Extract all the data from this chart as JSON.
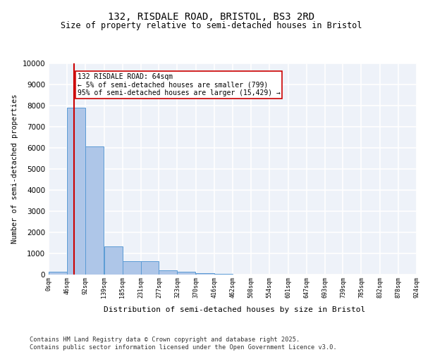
{
  "title1": "132, RISDALE ROAD, BRISTOL, BS3 2RD",
  "title2": "Size of property relative to semi-detached houses in Bristol",
  "xlabel": "Distribution of semi-detached houses by size in Bristol",
  "ylabel": "Number of semi-detached properties",
  "footer1": "Contains HM Land Registry data © Crown copyright and database right 2025.",
  "footer2": "Contains public sector information licensed under the Open Government Licence v3.0.",
  "annotation_title": "132 RISDALE ROAD: 64sqm",
  "annotation_line1": "← 5% of semi-detached houses are smaller (799)",
  "annotation_line2": "95% of semi-detached houses are larger (15,429) →",
  "property_size": 64,
  "bin_width": 46,
  "bin_starts": [
    0,
    46,
    92,
    139,
    185,
    231,
    277,
    323,
    370,
    416,
    462,
    508,
    554,
    601,
    647,
    693,
    739,
    785,
    832,
    878
  ],
  "bin_labels": [
    "0sqm",
    "46sqm",
    "92sqm",
    "139sqm",
    "185sqm",
    "231sqm",
    "277sqm",
    "323sqm",
    "370sqm",
    "416sqm",
    "462sqm",
    "508sqm",
    "554sqm",
    "601sqm",
    "647sqm",
    "693sqm",
    "739sqm",
    "785sqm",
    "832sqm",
    "878sqm",
    "924sqm"
  ],
  "bar_heights": [
    150,
    7900,
    6050,
    1350,
    650,
    650,
    200,
    130,
    60,
    30,
    15,
    8,
    5,
    3,
    2,
    1,
    1,
    0,
    0,
    0
  ],
  "bar_color": "#aec6e8",
  "bar_edge_color": "#5b9bd5",
  "red_line_color": "#cc0000",
  "annotation_box_edge": "#cc0000",
  "background_color": "#eef2f9",
  "grid_color": "#ffffff",
  "ylim": [
    0,
    10000
  ],
  "yticks": [
    0,
    1000,
    2000,
    3000,
    4000,
    5000,
    6000,
    7000,
    8000,
    9000,
    10000
  ]
}
